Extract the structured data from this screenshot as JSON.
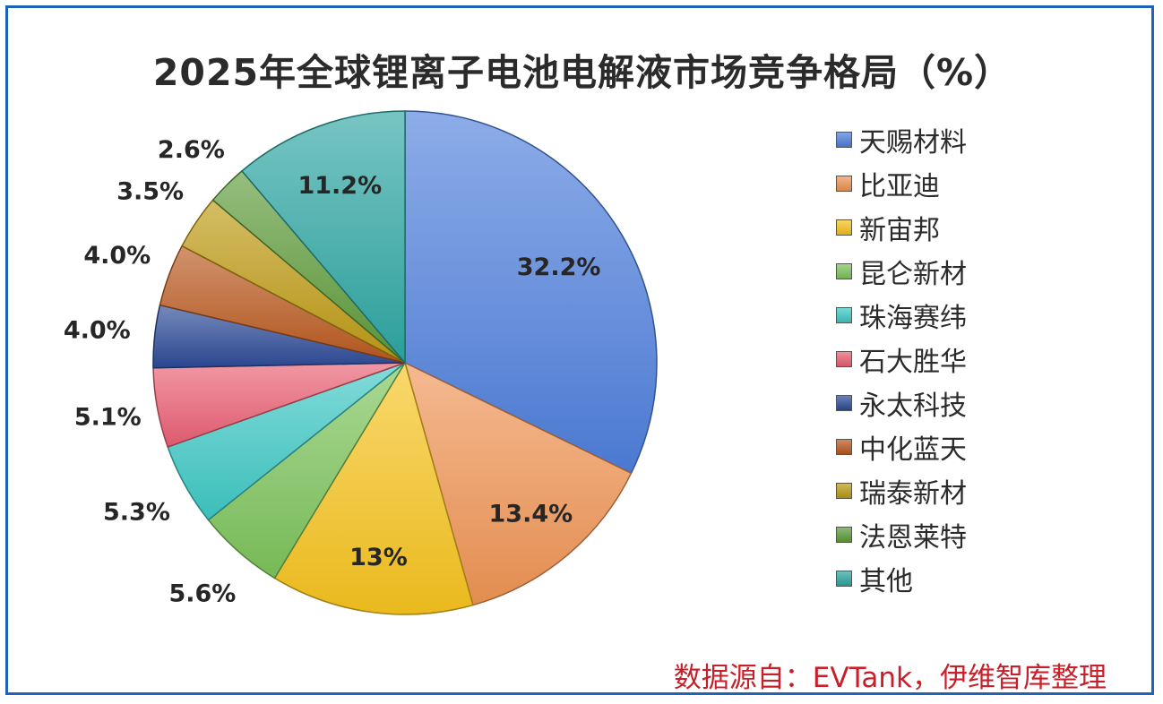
{
  "title": "2025年全球锂离子电池电解液市场竞争格局（%）",
  "source": "数据源自：EVTank，伊维智库整理",
  "chart_data": {
    "type": "pie",
    "title": "2025年全球锂离子电池电解液市场竞争格局（%）",
    "legend_position": "right",
    "slices": [
      {
        "name": "天赐材料",
        "value": 32.2,
        "label": "32.2%",
        "color": "#4f7fdc"
      },
      {
        "name": "比亚迪",
        "value": 13.4,
        "label": "13.4%",
        "color": "#ef9454"
      },
      {
        "name": "新宙邦",
        "value": 13,
        "label": "13%",
        "color": "#f6c31e"
      },
      {
        "name": "昆仑新材",
        "value": 5.6,
        "label": "5.6%",
        "color": "#7cc35a"
      },
      {
        "name": "珠海赛纬",
        "value": 5.3,
        "label": "5.3%",
        "color": "#3ec8c4"
      },
      {
        "name": "石大胜华",
        "value": 5.1,
        "label": "5.1%",
        "color": "#e95f73"
      },
      {
        "name": "永太科技",
        "value": 4.0,
        "label": "4.0%",
        "color": "#2c4a96"
      },
      {
        "name": "中化蓝天",
        "value": 4.0,
        "label": "4.0%",
        "color": "#b9591f"
      },
      {
        "name": "瑞泰新材",
        "value": 3.5,
        "label": "3.5%",
        "color": "#bd9a14"
      },
      {
        "name": "法恩莱特",
        "value": 2.6,
        "label": "2.6%",
        "color": "#5e9b3a"
      },
      {
        "name": "其他",
        "value": 11.2,
        "label": "11.2%",
        "color": "#2ea6a2"
      }
    ]
  }
}
